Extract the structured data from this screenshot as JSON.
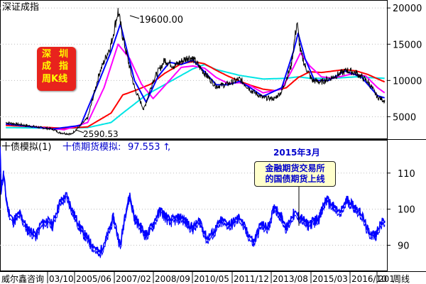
{
  "chart_data": [
    {
      "type": "line",
      "title": "深证成指",
      "peak_label": "19600.00",
      "trough_label": "2590.53",
      "y_ticks": [
        "20000",
        "15000",
        "10000",
        "5000"
      ],
      "ylim": [
        2000,
        21000
      ],
      "badge": [
        "深",
        "圳",
        "成",
        "指",
        "周K线"
      ],
      "colors": {
        "price": "#000000",
        "ma_blue": "#0000ff",
        "ma_magenta": "#ff00ff",
        "ma_red": "#ff0000",
        "ma_cyan": "#00e5e5"
      },
      "series": [
        {
          "name": "price",
          "x": [
            2003.0,
            2004.5,
            2005.0,
            2005.3,
            2005.8,
            2006.0,
            2006.5,
            2007.0,
            2007.5,
            2007.8,
            2008.0,
            2008.5,
            2008.9,
            2009.3,
            2009.8,
            2010.2,
            2010.8,
            2011.0,
            2011.5,
            2012.0,
            2012.5,
            2013.0,
            2013.5,
            2014.0,
            2014.5,
            2014.8,
            2015.2,
            2015.45,
            2015.6,
            2015.8,
            2016.1,
            2016.5,
            2017.0,
            2017.6,
            2018.0,
            2018.5,
            2018.9,
            2019.2
          ],
          "y": [
            4200,
            3500,
            3300,
            2800,
            2590,
            3200,
            4800,
            11000,
            15000,
            19600,
            16000,
            9000,
            6000,
            10000,
            12800,
            12000,
            13200,
            13000,
            11000,
            9200,
            9500,
            10200,
            8600,
            7600,
            7500,
            8500,
            12000,
            18000,
            14000,
            12000,
            10000,
            9800,
            10500,
            11400,
            11000,
            9800,
            7700,
            7200
          ]
        },
        {
          "name": "ma_blue",
          "x": [
            2003.0,
            2005.0,
            2006.2,
            2007.0,
            2007.5,
            2007.9,
            2008.5,
            2009.0,
            2009.5,
            2010.0,
            2010.5,
            2011.0,
            2011.5,
            2012.0,
            2012.5,
            2013.0,
            2013.5,
            2014.0,
            2014.8,
            2015.3,
            2015.5,
            2015.8,
            2016.2,
            2016.8,
            2017.5,
            2018.2,
            2018.9,
            2019.2
          ],
          "y": [
            4000,
            3300,
            3800,
            10000,
            14000,
            17800,
            10000,
            7000,
            10500,
            12500,
            12200,
            12800,
            11200,
            9400,
            9400,
            9900,
            8900,
            7800,
            9000,
            14000,
            16500,
            13000,
            10000,
            10000,
            11300,
            10500,
            7900,
            7600
          ]
        },
        {
          "name": "ma_magenta",
          "x": [
            2003.0,
            2005.5,
            2006.5,
            2007.2,
            2007.8,
            2008.3,
            2008.8,
            2009.3,
            2010.0,
            2010.5,
            2011.0,
            2011.5,
            2012.0,
            2012.5,
            2013.0,
            2013.5,
            2014.0,
            2014.8,
            2015.3,
            2015.6,
            2016.0,
            2016.5,
            2017.0,
            2017.8,
            2018.4,
            2018.9,
            2019.2
          ],
          "y": [
            4000,
            3200,
            4200,
            9000,
            15000,
            13000,
            9500,
            7500,
            10000,
            11800,
            12000,
            11700,
            10400,
            9600,
            9700,
            9200,
            8300,
            8800,
            11800,
            13800,
            12000,
            10500,
            10300,
            10900,
            10600,
            9000,
            8300
          ]
        },
        {
          "name": "ma_red",
          "x": [
            2003.0,
            2005.5,
            2006.5,
            2007.5,
            2008.0,
            2008.6,
            2009.2,
            2009.8,
            2010.5,
            2011.0,
            2011.5,
            2012.0,
            2012.5,
            2013.0,
            2013.5,
            2014.0,
            2014.5,
            2015.0,
            2015.5,
            2016.0,
            2016.5,
            2017.0,
            2017.5,
            2018.0,
            2018.5,
            2019.2
          ],
          "y": [
            3800,
            3400,
            3600,
            5500,
            8000,
            8700,
            9500,
            11000,
            12300,
            12600,
            12300,
            11400,
            10600,
            9900,
            9300,
            8800,
            8600,
            9000,
            10400,
            11200,
            11100,
            11300,
            11500,
            11300,
            10800,
            9800
          ]
        },
        {
          "name": "ma_cyan",
          "x": [
            2003.0,
            2005.5,
            2006.5,
            2007.5,
            2008.0,
            2009.0,
            2010.0,
            2011.0,
            2011.5,
            2012.0,
            2013.0,
            2014.0,
            2015.0,
            2015.5,
            2016.0,
            2017.0,
            2018.0,
            2018.5,
            2019.2
          ],
          "y": [
            3500,
            3400,
            3500,
            4200,
            5500,
            8000,
            9800,
            11600,
            12200,
            11500,
            10700,
            10200,
            10300,
            10500,
            10300,
            10300,
            10500,
            10400,
            10300
          ]
        }
      ]
    },
    {
      "type": "line",
      "legend": [
        "十债模拟(1)",
        "十债期货模拟:",
        "97.553",
        "↑",
        ","
      ],
      "annotation_title": "2015年3月",
      "annotation_lines": [
        "金融期货交易所",
        "的国债期货上线"
      ],
      "y_ticks": [
        "110",
        "100",
        "90"
      ],
      "ylim": [
        83,
        119
      ],
      "x_tick_labels": [
        "03/10",
        "2005/06",
        "2007/02",
        "2008/09",
        "2010/05",
        "2011/12",
        "2013/08",
        "2015/03",
        "2016/10",
        "201"
      ],
      "bottom_text": [
        "威尔鑫咨询",
        "周线"
      ],
      "colors": {
        "line": "#0000ff",
        "legend_text": "#0000cc",
        "annotation": "#0000cc"
      },
      "series": [
        {
          "name": "十债期货模拟",
          "x": [
            2002.75,
            2002.8,
            2002.9,
            2003.0,
            2003.1,
            2003.3,
            2003.6,
            2003.9,
            2004.1,
            2004.3,
            2004.5,
            2004.75,
            2005.0,
            2005.3,
            2005.6,
            2005.9,
            2006.2,
            2006.6,
            2007.0,
            2007.3,
            2007.6,
            2007.9,
            2008.1,
            2008.3,
            2008.5,
            2008.8,
            2009.0,
            2009.3,
            2009.6,
            2010.0,
            2010.5,
            2011.0,
            2011.3,
            2011.6,
            2011.9,
            2012.2,
            2012.6,
            2013.0,
            2013.3,
            2013.6,
            2013.9,
            2014.2,
            2014.5,
            2014.8,
            2015.0,
            2015.3,
            2015.6,
            2015.9,
            2016.2,
            2016.4,
            2016.7,
            2017.0,
            2017.3,
            2017.6,
            2017.9,
            2018.2,
            2018.5,
            2018.8,
            2019.0,
            2019.2
          ],
          "y": [
            117,
            106,
            110,
            104,
            100,
            97,
            99,
            95,
            94,
            93,
            96,
            97,
            96,
            102,
            104,
            99,
            95,
            91,
            88,
            92,
            98,
            90,
            99,
            104,
            98,
            95,
            93,
            96,
            100,
            97,
            98,
            95,
            97,
            92,
            94,
            97,
            96,
            98,
            94,
            91,
            96,
            95,
            101,
            98,
            95,
            99,
            98,
            96,
            97,
            98,
            103,
            101,
            99,
            103,
            101,
            99,
            94,
            93,
            96,
            97
          ]
        }
      ]
    }
  ]
}
